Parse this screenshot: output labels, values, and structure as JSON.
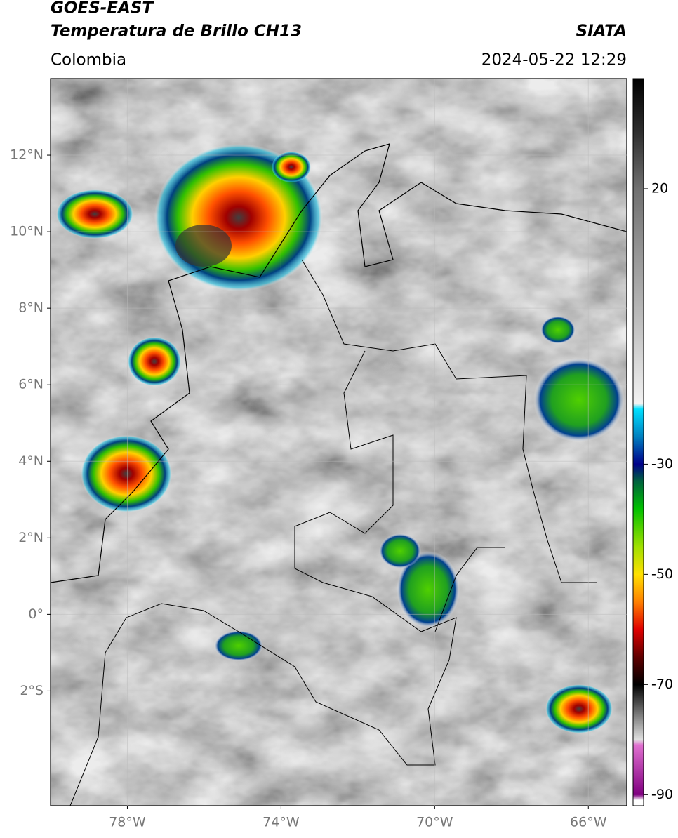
{
  "header": {
    "title": "GOES-EAST",
    "subtitle": "Temperatura de Brillo CH13",
    "region": "Colombia",
    "source": "SIATA",
    "datetime": "2024-05-22 12:29"
  },
  "map": {
    "xlim": [
      -80,
      -65
    ],
    "ylim": [
      -5,
      14
    ],
    "grid": true,
    "xticks": [
      {
        "value": -78,
        "label": "78°W"
      },
      {
        "value": -74,
        "label": "74°W"
      },
      {
        "value": -70,
        "label": "70°W"
      },
      {
        "value": -66,
        "label": "66°W"
      }
    ],
    "yticks": [
      {
        "value": 12,
        "label": "12°N"
      },
      {
        "value": 10,
        "label": "10°N"
      },
      {
        "value": 8,
        "label": "8°N"
      },
      {
        "value": 6,
        "label": "6°N"
      },
      {
        "value": 4,
        "label": "4°N"
      },
      {
        "value": 2,
        "label": "2°N"
      },
      {
        "value": 0,
        "label": "0°"
      },
      {
        "value": -2,
        "label": "2°S"
      }
    ]
  },
  "colorbar": {
    "clim": [
      -92,
      40
    ],
    "ticks": [
      20,
      -30,
      -50,
      -70,
      -90
    ],
    "stops": [
      {
        "value": 40,
        "color": "#000000"
      },
      {
        "value": 30,
        "color": "#303030"
      },
      {
        "value": 20,
        "color": "#707070"
      },
      {
        "value": 0,
        "color": "#b0b0b0"
      },
      {
        "value": -19,
        "color": "#f2f2f2"
      },
      {
        "value": -20,
        "color": "#00e0ff"
      },
      {
        "value": -25,
        "color": "#0080c0"
      },
      {
        "value": -30,
        "color": "#00008a"
      },
      {
        "value": -33,
        "color": "#006040"
      },
      {
        "value": -38,
        "color": "#00c000"
      },
      {
        "value": -45,
        "color": "#a0e000"
      },
      {
        "value": -50,
        "color": "#ffe000"
      },
      {
        "value": -55,
        "color": "#ff8000"
      },
      {
        "value": -60,
        "color": "#e00000"
      },
      {
        "value": -65,
        "color": "#600000"
      },
      {
        "value": -70,
        "color": "#000000"
      },
      {
        "value": -80,
        "color": "#e0e0e0"
      },
      {
        "value": -81,
        "color": "#e070d0"
      },
      {
        "value": -90,
        "color": "#800080"
      },
      {
        "value": -91,
        "color": "#ffffff"
      },
      {
        "value": -92,
        "color": "#ffffff"
      }
    ]
  }
}
